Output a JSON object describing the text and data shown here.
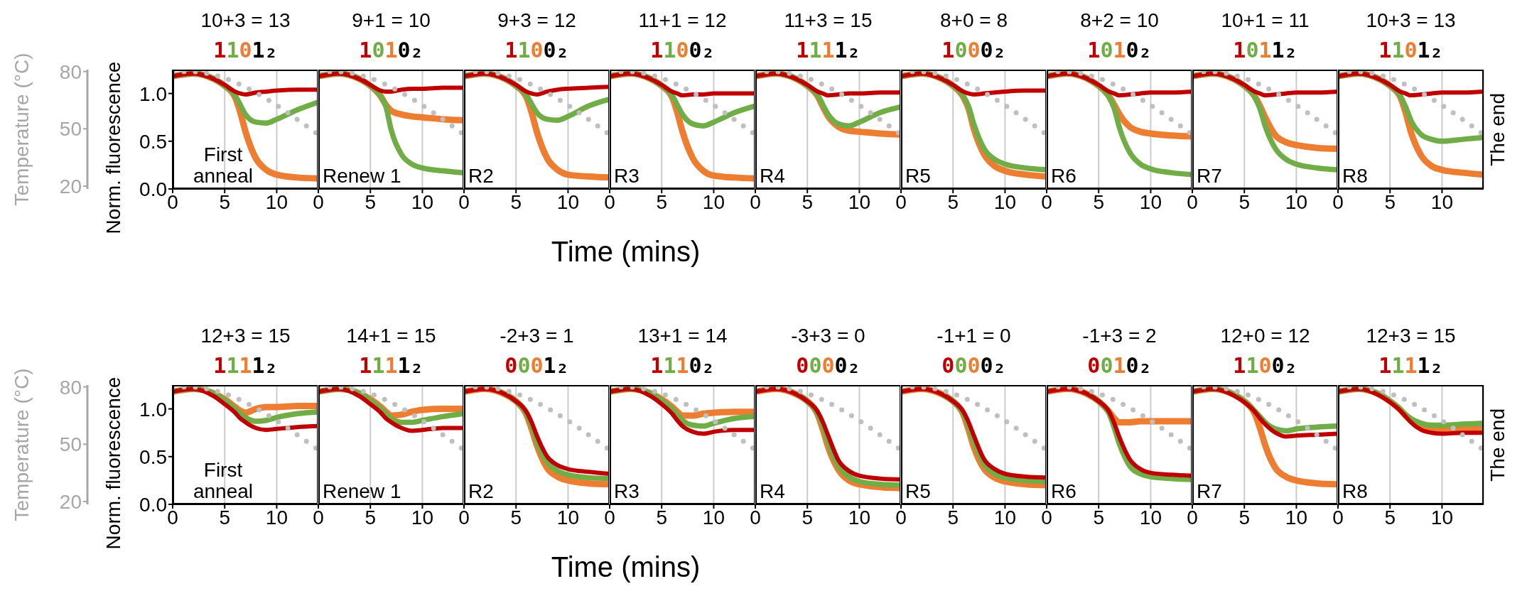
{
  "chart_data": [
    {
      "type": "line",
      "title": "10+3 = 13",
      "subtitle": "1101₂",
      "annotations": [
        "First anneal"
      ],
      "ylabel": "Norm. fluorescence",
      "y2label": "Temperature (°C)",
      "x": [
        0,
        2,
        4,
        5,
        6,
        6.5,
        7,
        8,
        9,
        10,
        12,
        14
      ],
      "xlim": [
        0,
        14
      ],
      "xticks": [
        0,
        5,
        10
      ],
      "ylim": [
        0,
        1.25
      ],
      "yticks": [
        {
          "value": 0,
          "label": "0.0"
        },
        {
          "value": 0.5,
          "label": "0.5"
        },
        {
          "value": 1,
          "label": "1.0"
        }
      ],
      "y2lim": [
        18.5,
        81
      ],
      "y2ticks": [
        20,
        50,
        80
      ],
      "grid": "x",
      "marker": "none",
      "series": [
        {
          "color": "#c00000",
          "values": [
            1.18,
            1.21,
            1.15,
            1.09,
            1.02,
            1.0,
            0.99,
            1.01,
            1.02,
            1.03,
            1.04,
            1.04
          ]
        },
        {
          "color": "#70ad47",
          "values": [
            1.18,
            1.21,
            1.15,
            1.08,
            0.98,
            0.88,
            0.78,
            0.7,
            0.69,
            0.73,
            0.83,
            0.91
          ]
        },
        {
          "color": "#ed7d31",
          "values": [
            1.18,
            1.21,
            1.15,
            1.08,
            0.96,
            0.8,
            0.6,
            0.32,
            0.2,
            0.15,
            0.12,
            0.11
          ]
        },
        {
          "color": "#bfbfbf",
          "axis": "y2",
          "line_style": "dotted",
          "x": [
            0,
            1.5,
            14
          ],
          "values": [
            80,
            80,
            47
          ]
        }
      ]
    },
    {
      "type": "line",
      "title": "9+1 = 10",
      "subtitle": "1010₂",
      "annotations": [
        "Renew 1"
      ],
      "x": [
        0,
        2,
        4,
        5,
        6,
        6.5,
        7,
        8,
        9,
        10,
        12,
        14
      ],
      "xlim": [
        0,
        14
      ],
      "xticks": [
        0,
        5,
        10
      ],
      "ylim": [
        0,
        1.25
      ],
      "y2lim": [
        18.5,
        81
      ],
      "grid": "x",
      "marker": "none",
      "tick_labels": "x",
      "series": [
        {
          "color": "#c00000",
          "values": [
            1.18,
            1.21,
            1.15,
            1.09,
            1.03,
            1.02,
            1.02,
            1.04,
            1.05,
            1.05,
            1.06,
            1.06
          ]
        },
        {
          "color": "#70ad47",
          "values": [
            1.18,
            1.21,
            1.15,
            1.08,
            0.97,
            0.86,
            0.62,
            0.36,
            0.26,
            0.22,
            0.19,
            0.17
          ]
        },
        {
          "color": "#ed7d31",
          "values": [
            1.18,
            1.21,
            1.15,
            1.08,
            0.97,
            0.88,
            0.82,
            0.78,
            0.76,
            0.75,
            0.73,
            0.72
          ]
        },
        {
          "color": "#bfbfbf",
          "axis": "y2",
          "line_style": "dotted",
          "x": [
            0,
            1.5,
            14
          ],
          "values": [
            80,
            80,
            47
          ]
        }
      ]
    },
    {
      "type": "line",
      "title": "9+3 = 12",
      "subtitle": "1100₂",
      "annotations": [
        "R2"
      ],
      "x": [
        0,
        2,
        4,
        5,
        6,
        6.5,
        7,
        8,
        9,
        10,
        12,
        14
      ],
      "xlim": [
        0,
        14
      ],
      "xticks": [
        0,
        5,
        10
      ],
      "ylim": [
        0,
        1.25
      ],
      "y2lim": [
        18.5,
        81
      ],
      "grid": "x",
      "marker": "none",
      "tick_labels": "x",
      "series": [
        {
          "color": "#c00000",
          "values": [
            1.18,
            1.21,
            1.15,
            1.09,
            1.02,
            1.0,
            0.99,
            1.02,
            1.04,
            1.05,
            1.06,
            1.07
          ]
        },
        {
          "color": "#70ad47",
          "values": [
            1.18,
            1.21,
            1.15,
            1.08,
            0.98,
            0.89,
            0.8,
            0.73,
            0.72,
            0.76,
            0.87,
            0.94
          ]
        },
        {
          "color": "#ed7d31",
          "values": [
            1.18,
            1.21,
            1.15,
            1.08,
            0.96,
            0.8,
            0.6,
            0.32,
            0.2,
            0.15,
            0.13,
            0.12
          ]
        },
        {
          "color": "#bfbfbf",
          "axis": "y2",
          "line_style": "dotted",
          "x": [
            0,
            1.5,
            14
          ],
          "values": [
            80,
            80,
            47
          ]
        }
      ]
    },
    {
      "type": "line",
      "title": "11+1 = 12",
      "subtitle": "1100₂",
      "annotations": [
        "R3"
      ],
      "xlabel": "Time (mins)",
      "x": [
        0,
        2,
        4,
        5,
        6,
        6.5,
        7,
        8,
        9,
        10,
        12,
        14
      ],
      "xlim": [
        0,
        14
      ],
      "xticks": [
        0,
        5,
        10
      ],
      "ylim": [
        0,
        1.25
      ],
      "y2lim": [
        18.5,
        81
      ],
      "grid": "x",
      "marker": "none",
      "tick_labels": "x",
      "series": [
        {
          "color": "#c00000",
          "values": [
            1.18,
            1.21,
            1.15,
            1.09,
            1.02,
            1.0,
            0.98,
            0.99,
            0.99,
            1.0,
            1.0,
            1.0
          ]
        },
        {
          "color": "#70ad47",
          "values": [
            1.18,
            1.21,
            1.15,
            1.08,
            0.98,
            0.88,
            0.78,
            0.68,
            0.66,
            0.7,
            0.8,
            0.87
          ]
        },
        {
          "color": "#ed7d31",
          "values": [
            1.18,
            1.21,
            1.15,
            1.08,
            0.96,
            0.8,
            0.6,
            0.32,
            0.19,
            0.14,
            0.12,
            0.11
          ]
        },
        {
          "color": "#bfbfbf",
          "axis": "y2",
          "line_style": "dotted",
          "x": [
            0,
            1.5,
            14
          ],
          "values": [
            80,
            80,
            47
          ]
        }
      ]
    },
    {
      "type": "line",
      "title": "11+3 = 15",
      "subtitle": "1111₂",
      "annotations": [
        "R4"
      ],
      "x": [
        0,
        2,
        4,
        5,
        6,
        6.5,
        7,
        8,
        9,
        10,
        12,
        14
      ],
      "xlim": [
        0,
        14
      ],
      "xticks": [
        0,
        5,
        10
      ],
      "ylim": [
        0,
        1.25
      ],
      "y2lim": [
        18.5,
        81
      ],
      "grid": "x",
      "marker": "none",
      "tick_labels": "x",
      "series": [
        {
          "color": "#c00000",
          "values": [
            1.18,
            1.21,
            1.15,
            1.09,
            1.02,
            1.0,
            0.98,
            0.99,
            1.0,
            1.0,
            1.01,
            1.01
          ]
        },
        {
          "color": "#70ad47",
          "values": [
            1.18,
            1.21,
            1.15,
            1.08,
            0.98,
            0.88,
            0.78,
            0.68,
            0.66,
            0.7,
            0.8,
            0.86
          ]
        },
        {
          "color": "#ed7d31",
          "values": [
            1.18,
            1.21,
            1.15,
            1.08,
            0.97,
            0.86,
            0.76,
            0.65,
            0.61,
            0.6,
            0.58,
            0.57
          ]
        },
        {
          "color": "#bfbfbf",
          "axis": "y2",
          "line_style": "dotted",
          "x": [
            0,
            1.5,
            14
          ],
          "values": [
            80,
            80,
            47
          ]
        }
      ]
    },
    {
      "type": "line",
      "title": "8+0 = 8",
      "subtitle": "1000₂",
      "annotations": [
        "R5"
      ],
      "x": [
        0,
        2,
        4,
        5,
        6,
        6.5,
        7,
        8,
        9,
        10,
        12,
        14
      ],
      "xlim": [
        0,
        14
      ],
      "xticks": [
        0,
        5,
        10
      ],
      "ylim": [
        0,
        1.25
      ],
      "y2lim": [
        18.5,
        81
      ],
      "grid": "x",
      "marker": "none",
      "tick_labels": "x",
      "series": [
        {
          "color": "#c00000",
          "values": [
            1.18,
            1.21,
            1.15,
            1.09,
            1.02,
            1.0,
            0.99,
            1.0,
            1.01,
            1.02,
            1.03,
            1.03
          ]
        },
        {
          "color": "#70ad47",
          "values": [
            1.18,
            1.21,
            1.15,
            1.08,
            0.97,
            0.86,
            0.68,
            0.42,
            0.31,
            0.26,
            0.22,
            0.2
          ]
        },
        {
          "color": "#ed7d31",
          "values": [
            1.18,
            1.21,
            1.15,
            1.08,
            0.96,
            0.84,
            0.63,
            0.36,
            0.24,
            0.19,
            0.15,
            0.13
          ]
        },
        {
          "color": "#bfbfbf",
          "axis": "y2",
          "line_style": "dotted",
          "x": [
            0,
            1.5,
            14
          ],
          "values": [
            80,
            80,
            47
          ]
        }
      ]
    },
    {
      "type": "line",
      "title": "8+2 = 10",
      "subtitle": "1010₂",
      "annotations": [
        "R6"
      ],
      "x": [
        0,
        2,
        4,
        5,
        6,
        6.5,
        7,
        8,
        9,
        10,
        12,
        14
      ],
      "xlim": [
        0,
        14
      ],
      "xticks": [
        0,
        5,
        10
      ],
      "ylim": [
        0,
        1.25
      ],
      "y2lim": [
        18.5,
        81
      ],
      "grid": "x",
      "marker": "none",
      "tick_labels": "x",
      "series": [
        {
          "color": "#c00000",
          "values": [
            1.18,
            1.21,
            1.15,
            1.09,
            1.02,
            1.0,
            0.98,
            0.99,
            1.0,
            1.01,
            1.01,
            1.02
          ]
        },
        {
          "color": "#70ad47",
          "values": [
            1.18,
            1.21,
            1.15,
            1.08,
            0.96,
            0.84,
            0.64,
            0.38,
            0.26,
            0.21,
            0.17,
            0.15
          ]
        },
        {
          "color": "#ed7d31",
          "values": [
            1.18,
            1.21,
            1.15,
            1.08,
            0.97,
            0.88,
            0.78,
            0.65,
            0.6,
            0.58,
            0.56,
            0.55
          ]
        },
        {
          "color": "#bfbfbf",
          "axis": "y2",
          "line_style": "dotted",
          "x": [
            0,
            1.5,
            14
          ],
          "values": [
            80,
            80,
            47
          ]
        }
      ]
    },
    {
      "type": "line",
      "title": "10+1 = 11",
      "subtitle": "1011₂",
      "annotations": [
        "R7"
      ],
      "x": [
        0,
        2,
        4,
        5,
        6,
        6.5,
        7,
        8,
        9,
        10,
        12,
        14
      ],
      "xlim": [
        0,
        14
      ],
      "xticks": [
        0,
        5,
        10
      ],
      "ylim": [
        0,
        1.25
      ],
      "y2lim": [
        18.5,
        81
      ],
      "grid": "x",
      "marker": "none",
      "tick_labels": "x",
      "series": [
        {
          "color": "#c00000",
          "values": [
            1.18,
            1.21,
            1.15,
            1.09,
            1.02,
            1.0,
            0.98,
            0.99,
            1.0,
            1.01,
            1.01,
            1.02
          ]
        },
        {
          "color": "#70ad47",
          "values": [
            1.18,
            1.21,
            1.15,
            1.08,
            0.96,
            0.84,
            0.66,
            0.42,
            0.31,
            0.26,
            0.22,
            0.2
          ]
        },
        {
          "color": "#ed7d31",
          "values": [
            1.18,
            1.21,
            1.15,
            1.08,
            0.97,
            0.87,
            0.75,
            0.56,
            0.49,
            0.46,
            0.43,
            0.42
          ]
        },
        {
          "color": "#bfbfbf",
          "axis": "y2",
          "line_style": "dotted",
          "x": [
            0,
            1.5,
            14
          ],
          "values": [
            80,
            80,
            47
          ]
        }
      ]
    },
    {
      "type": "line",
      "title": "10+3 = 13",
      "subtitle": "1101₂",
      "annotations": [
        "R8",
        "The end"
      ],
      "x": [
        0,
        2,
        4,
        5,
        6,
        6.5,
        7,
        8,
        9,
        10,
        12,
        14
      ],
      "xlim": [
        0,
        14
      ],
      "xticks": [
        0,
        5,
        10
      ],
      "ylim": [
        0,
        1.25
      ],
      "y2lim": [
        18.5,
        81
      ],
      "grid": "x",
      "marker": "none",
      "tick_labels": "x",
      "series": [
        {
          "color": "#c00000",
          "values": [
            1.18,
            1.21,
            1.15,
            1.09,
            1.02,
            1.0,
            0.98,
            0.99,
            1.0,
            1.01,
            1.01,
            1.02
          ]
        },
        {
          "color": "#70ad47",
          "values": [
            1.18,
            1.21,
            1.15,
            1.08,
            0.97,
            0.86,
            0.72,
            0.57,
            0.52,
            0.5,
            0.52,
            0.54
          ]
        },
        {
          "color": "#ed7d31",
          "values": [
            1.18,
            1.21,
            1.15,
            1.08,
            0.96,
            0.8,
            0.6,
            0.35,
            0.24,
            0.2,
            0.17,
            0.15
          ]
        },
        {
          "color": "#bfbfbf",
          "axis": "y2",
          "line_style": "dotted",
          "x": [
            0,
            1.5,
            14
          ],
          "values": [
            80,
            80,
            47
          ]
        }
      ]
    },
    {
      "type": "line",
      "title": "12+3 = 15",
      "subtitle": "1111₂",
      "annotations": [
        "First anneal"
      ],
      "ylabel": "Norm. fluorescence",
      "y2label": "Temperature (°C)",
      "x": [
        0,
        2,
        4,
        5,
        6,
        6.5,
        7,
        8,
        9,
        10,
        12,
        14
      ],
      "xlim": [
        0,
        14
      ],
      "xticks": [
        0,
        5,
        10
      ],
      "ylim": [
        0,
        1.25
      ],
      "yticks": [
        {
          "value": 0,
          "label": "0.0"
        },
        {
          "value": 0.5,
          "label": "0.5"
        },
        {
          "value": 1,
          "label": "1.0"
        }
      ],
      "y2lim": [
        18.5,
        81
      ],
      "y2ticks": [
        20,
        50,
        80
      ],
      "grid": "x",
      "marker": "none",
      "series": [
        {
          "color": "#c00000",
          "values": [
            1.18,
            1.21,
            1.13,
            1.05,
            0.96,
            0.9,
            0.86,
            0.8,
            0.78,
            0.79,
            0.81,
            0.82
          ]
        },
        {
          "color": "#70ad47",
          "values": [
            1.18,
            1.21,
            1.16,
            1.09,
            1.0,
            0.95,
            0.91,
            0.87,
            0.88,
            0.91,
            0.95,
            0.97
          ]
        },
        {
          "color": "#ed7d31",
          "values": [
            1.18,
            1.21,
            1.16,
            1.1,
            1.02,
            0.98,
            0.96,
            1.0,
            1.02,
            1.02,
            1.03,
            1.03
          ]
        },
        {
          "color": "#bfbfbf",
          "axis": "y2",
          "line_style": "dotted",
          "x": [
            0,
            1.5,
            14
          ],
          "values": [
            80,
            80,
            47
          ]
        }
      ]
    },
    {
      "type": "line",
      "title": "14+1 = 15",
      "subtitle": "1111₂",
      "annotations": [
        "Renew 1"
      ],
      "x": [
        0,
        2,
        4,
        5,
        6,
        6.5,
        7,
        8,
        9,
        10,
        12,
        14
      ],
      "xlim": [
        0,
        14
      ],
      "xticks": [
        0,
        5,
        10
      ],
      "ylim": [
        0,
        1.25
      ],
      "y2lim": [
        18.5,
        81
      ],
      "grid": "x",
      "marker": "none",
      "tick_labels": "x",
      "series": [
        {
          "color": "#c00000",
          "values": [
            1.18,
            1.21,
            1.13,
            1.05,
            0.96,
            0.9,
            0.86,
            0.8,
            0.77,
            0.78,
            0.8,
            0.8
          ]
        },
        {
          "color": "#70ad47",
          "values": [
            1.18,
            1.21,
            1.16,
            1.09,
            1.0,
            0.95,
            0.9,
            0.86,
            0.86,
            0.88,
            0.92,
            0.95
          ]
        },
        {
          "color": "#ed7d31",
          "values": [
            1.18,
            1.21,
            1.16,
            1.1,
            1.02,
            0.97,
            0.93,
            0.94,
            0.97,
            0.99,
            1.0,
            1.0
          ]
        },
        {
          "color": "#bfbfbf",
          "axis": "y2",
          "line_style": "dotted",
          "x": [
            0,
            1.5,
            14
          ],
          "values": [
            80,
            80,
            47
          ]
        }
      ]
    },
    {
      "type": "line",
      "title": "-2+3 = 1",
      "subtitle": "0001₂",
      "annotations": [
        "R2"
      ],
      "x": [
        0,
        2,
        4,
        5,
        6,
        6.5,
        7,
        8,
        9,
        10,
        12,
        14
      ],
      "xlim": [
        0,
        14
      ],
      "xticks": [
        0,
        5,
        10
      ],
      "ylim": [
        0,
        1.25
      ],
      "y2lim": [
        18.5,
        81
      ],
      "grid": "x",
      "marker": "none",
      "tick_labels": "x",
      "series": [
        {
          "color": "#c00000",
          "values": [
            1.18,
            1.21,
            1.15,
            1.08,
            0.97,
            0.86,
            0.72,
            0.5,
            0.41,
            0.37,
            0.34,
            0.32
          ]
        },
        {
          "color": "#70ad47",
          "values": [
            null,
            null,
            1.15,
            1.08,
            0.95,
            0.82,
            0.66,
            0.44,
            0.35,
            0.31,
            0.28,
            0.27
          ]
        },
        {
          "color": "#ed7d31",
          "values": [
            1.18,
            1.21,
            1.15,
            1.08,
            0.94,
            0.79,
            0.62,
            0.38,
            0.29,
            0.25,
            0.22,
            0.21
          ]
        },
        {
          "color": "#bfbfbf",
          "axis": "y2",
          "line_style": "dotted",
          "x": [
            0,
            1.5,
            14
          ],
          "values": [
            80,
            80,
            47
          ]
        }
      ]
    },
    {
      "type": "line",
      "title": "13+1 = 14",
      "subtitle": "1110₂",
      "annotations": [
        "R3"
      ],
      "xlabel": "Time (mins)",
      "x": [
        0,
        2,
        4,
        5,
        6,
        6.5,
        7,
        8,
        9,
        10,
        12,
        14
      ],
      "xlim": [
        0,
        14
      ],
      "xticks": [
        0,
        5,
        10
      ],
      "ylim": [
        0,
        1.25
      ],
      "y2lim": [
        18.5,
        81
      ],
      "grid": "x",
      "marker": "none",
      "tick_labels": "x",
      "series": [
        {
          "color": "#c00000",
          "values": [
            1.18,
            1.21,
            1.13,
            1.05,
            0.95,
            0.88,
            0.82,
            0.76,
            0.74,
            0.76,
            0.78,
            0.78
          ]
        },
        {
          "color": "#70ad47",
          "values": [
            1.18,
            1.21,
            1.16,
            1.09,
            1.0,
            0.94,
            0.88,
            0.83,
            0.82,
            0.85,
            0.9,
            0.92
          ]
        },
        {
          "color": "#ed7d31",
          "values": [
            1.18,
            1.21,
            1.16,
            1.1,
            1.02,
            0.97,
            0.93,
            0.93,
            0.95,
            0.96,
            0.97,
            0.97
          ]
        },
        {
          "color": "#bfbfbf",
          "axis": "y2",
          "line_style": "dotted",
          "x": [
            0,
            1.5,
            14
          ],
          "values": [
            80,
            80,
            47
          ]
        }
      ]
    },
    {
      "type": "line",
      "title": "-3+3 = 0",
      "subtitle": "0000₂",
      "annotations": [
        "R4"
      ],
      "x": [
        0,
        2,
        4,
        5,
        6,
        6.5,
        7,
        8,
        9,
        10,
        12,
        14
      ],
      "xlim": [
        0,
        14
      ],
      "xticks": [
        0,
        5,
        10
      ],
      "ylim": [
        0,
        1.25
      ],
      "y2lim": [
        18.5,
        81
      ],
      "grid": "x",
      "marker": "none",
      "tick_labels": "x",
      "series": [
        {
          "color": "#c00000",
          "values": [
            1.18,
            1.21,
            1.15,
            1.08,
            0.97,
            0.86,
            0.72,
            0.46,
            0.35,
            0.3,
            0.27,
            0.26
          ]
        },
        {
          "color": "#70ad47",
          "values": [
            null,
            null,
            1.15,
            1.08,
            0.95,
            0.82,
            0.65,
            0.4,
            0.29,
            0.24,
            0.21,
            0.2
          ]
        },
        {
          "color": "#ed7d31",
          "values": [
            1.18,
            1.21,
            1.15,
            1.08,
            0.94,
            0.78,
            0.6,
            0.36,
            0.25,
            0.21,
            0.18,
            0.17
          ]
        },
        {
          "color": "#bfbfbf",
          "axis": "y2",
          "line_style": "dotted",
          "x": [
            0,
            1.5,
            14
          ],
          "values": [
            80,
            80,
            47
          ]
        }
      ]
    },
    {
      "type": "line",
      "title": "-1+1 = 0",
      "subtitle": "0000₂",
      "annotations": [
        "R5"
      ],
      "x": [
        0,
        2,
        4,
        5,
        6,
        6.5,
        7,
        8,
        9,
        10,
        12,
        14
      ],
      "xlim": [
        0,
        14
      ],
      "xticks": [
        0,
        5,
        10
      ],
      "ylim": [
        0,
        1.25
      ],
      "y2lim": [
        18.5,
        81
      ],
      "grid": "x",
      "marker": "none",
      "tick_labels": "x",
      "series": [
        {
          "color": "#c00000",
          "values": [
            1.18,
            1.21,
            1.15,
            1.08,
            0.97,
            0.86,
            0.72,
            0.47,
            0.37,
            0.32,
            0.29,
            0.28
          ]
        },
        {
          "color": "#70ad47",
          "values": [
            null,
            null,
            1.15,
            1.08,
            0.95,
            0.82,
            0.66,
            0.42,
            0.32,
            0.28,
            0.25,
            0.24
          ]
        },
        {
          "color": "#ed7d31",
          "values": [
            1.18,
            1.21,
            1.15,
            1.08,
            0.94,
            0.78,
            0.6,
            0.37,
            0.28,
            0.24,
            0.21,
            0.2
          ]
        },
        {
          "color": "#bfbfbf",
          "axis": "y2",
          "line_style": "dotted",
          "x": [
            0,
            1.5,
            14
          ],
          "values": [
            80,
            80,
            47
          ]
        }
      ]
    },
    {
      "type": "line",
      "title": "-1+3 = 2",
      "subtitle": "0010₂",
      "annotations": [
        "R6"
      ],
      "x": [
        0,
        2,
        4,
        5,
        6,
        6.5,
        7,
        8,
        9,
        10,
        12,
        14
      ],
      "xlim": [
        0,
        14
      ],
      "xticks": [
        0,
        5,
        10
      ],
      "ylim": [
        0,
        1.25
      ],
      "y2lim": [
        18.5,
        81
      ],
      "grid": "x",
      "marker": "none",
      "tick_labels": "x",
      "series": [
        {
          "color": "#c00000",
          "values": [
            1.18,
            1.21,
            1.15,
            1.08,
            0.97,
            0.85,
            0.7,
            0.47,
            0.37,
            0.33,
            0.31,
            0.3
          ]
        },
        {
          "color": "#70ad47",
          "values": [
            null,
            null,
            1.15,
            1.08,
            0.95,
            0.8,
            0.63,
            0.4,
            0.32,
            0.29,
            0.27,
            0.26
          ]
        },
        {
          "color": "#ed7d31",
          "values": [
            1.18,
            1.21,
            1.15,
            1.08,
            0.97,
            0.9,
            0.86,
            0.86,
            0.87,
            0.87,
            0.87,
            0.87
          ]
        },
        {
          "color": "#bfbfbf",
          "axis": "y2",
          "line_style": "dotted",
          "x": [
            0,
            1.5,
            14
          ],
          "values": [
            80,
            80,
            47
          ]
        }
      ]
    },
    {
      "type": "line",
      "title": "12+0 = 12",
      "subtitle": "1100₂",
      "annotations": [
        "R7"
      ],
      "x": [
        0,
        2,
        4,
        5,
        6,
        6.5,
        7,
        8,
        9,
        10,
        12,
        14
      ],
      "xlim": [
        0,
        14
      ],
      "xticks": [
        0,
        5,
        10
      ],
      "ylim": [
        0,
        1.25
      ],
      "y2lim": [
        18.5,
        81
      ],
      "grid": "x",
      "marker": "none",
      "tick_labels": "x",
      "series": [
        {
          "color": "#c00000",
          "values": [
            1.18,
            1.21,
            1.14,
            1.07,
            0.97,
            0.9,
            0.84,
            0.75,
            0.71,
            0.72,
            0.73,
            0.74
          ]
        },
        {
          "color": "#70ad47",
          "values": [
            1.18,
            1.21,
            1.15,
            1.08,
            0.98,
            0.92,
            0.86,
            0.79,
            0.77,
            0.79,
            0.81,
            0.82
          ]
        },
        {
          "color": "#ed7d31",
          "values": [
            1.18,
            1.21,
            1.15,
            1.08,
            0.95,
            0.8,
            0.62,
            0.38,
            0.29,
            0.25,
            0.22,
            0.21
          ]
        },
        {
          "color": "#bfbfbf",
          "axis": "y2",
          "line_style": "dotted",
          "x": [
            0,
            1.5,
            14
          ],
          "values": [
            80,
            80,
            47
          ]
        }
      ]
    },
    {
      "type": "line",
      "title": "12+3 = 15",
      "subtitle": "1111₂",
      "annotations": [
        "R8",
        "The end"
      ],
      "x": [
        0,
        2,
        4,
        5,
        6,
        6.5,
        7,
        8,
        9,
        10,
        12,
        14
      ],
      "xlim": [
        0,
        14
      ],
      "xticks": [
        0,
        5,
        10
      ],
      "ylim": [
        0,
        1.25
      ],
      "y2lim": [
        18.5,
        81
      ],
      "grid": "x",
      "marker": "none",
      "tick_labels": "x",
      "series": [
        {
          "color": "#c00000",
          "values": [
            1.18,
            1.21,
            1.14,
            1.07,
            0.98,
            0.92,
            0.86,
            0.78,
            0.75,
            0.74,
            0.75,
            0.75
          ]
        },
        {
          "color": "#70ad47",
          "values": [
            1.18,
            1.21,
            1.15,
            1.08,
            0.99,
            0.94,
            0.9,
            0.85,
            0.83,
            0.83,
            0.84,
            0.85
          ]
        },
        {
          "color": "#ed7d31",
          "values": [
            1.18,
            1.21,
            1.15,
            1.08,
            0.99,
            0.93,
            0.88,
            0.8,
            0.78,
            0.78,
            0.79,
            0.8
          ]
        },
        {
          "color": "#bfbfbf",
          "axis": "y2",
          "line_style": "dotted",
          "x": [
            0,
            1.5,
            14
          ],
          "values": [
            80,
            80,
            47
          ]
        }
      ]
    }
  ]
}
